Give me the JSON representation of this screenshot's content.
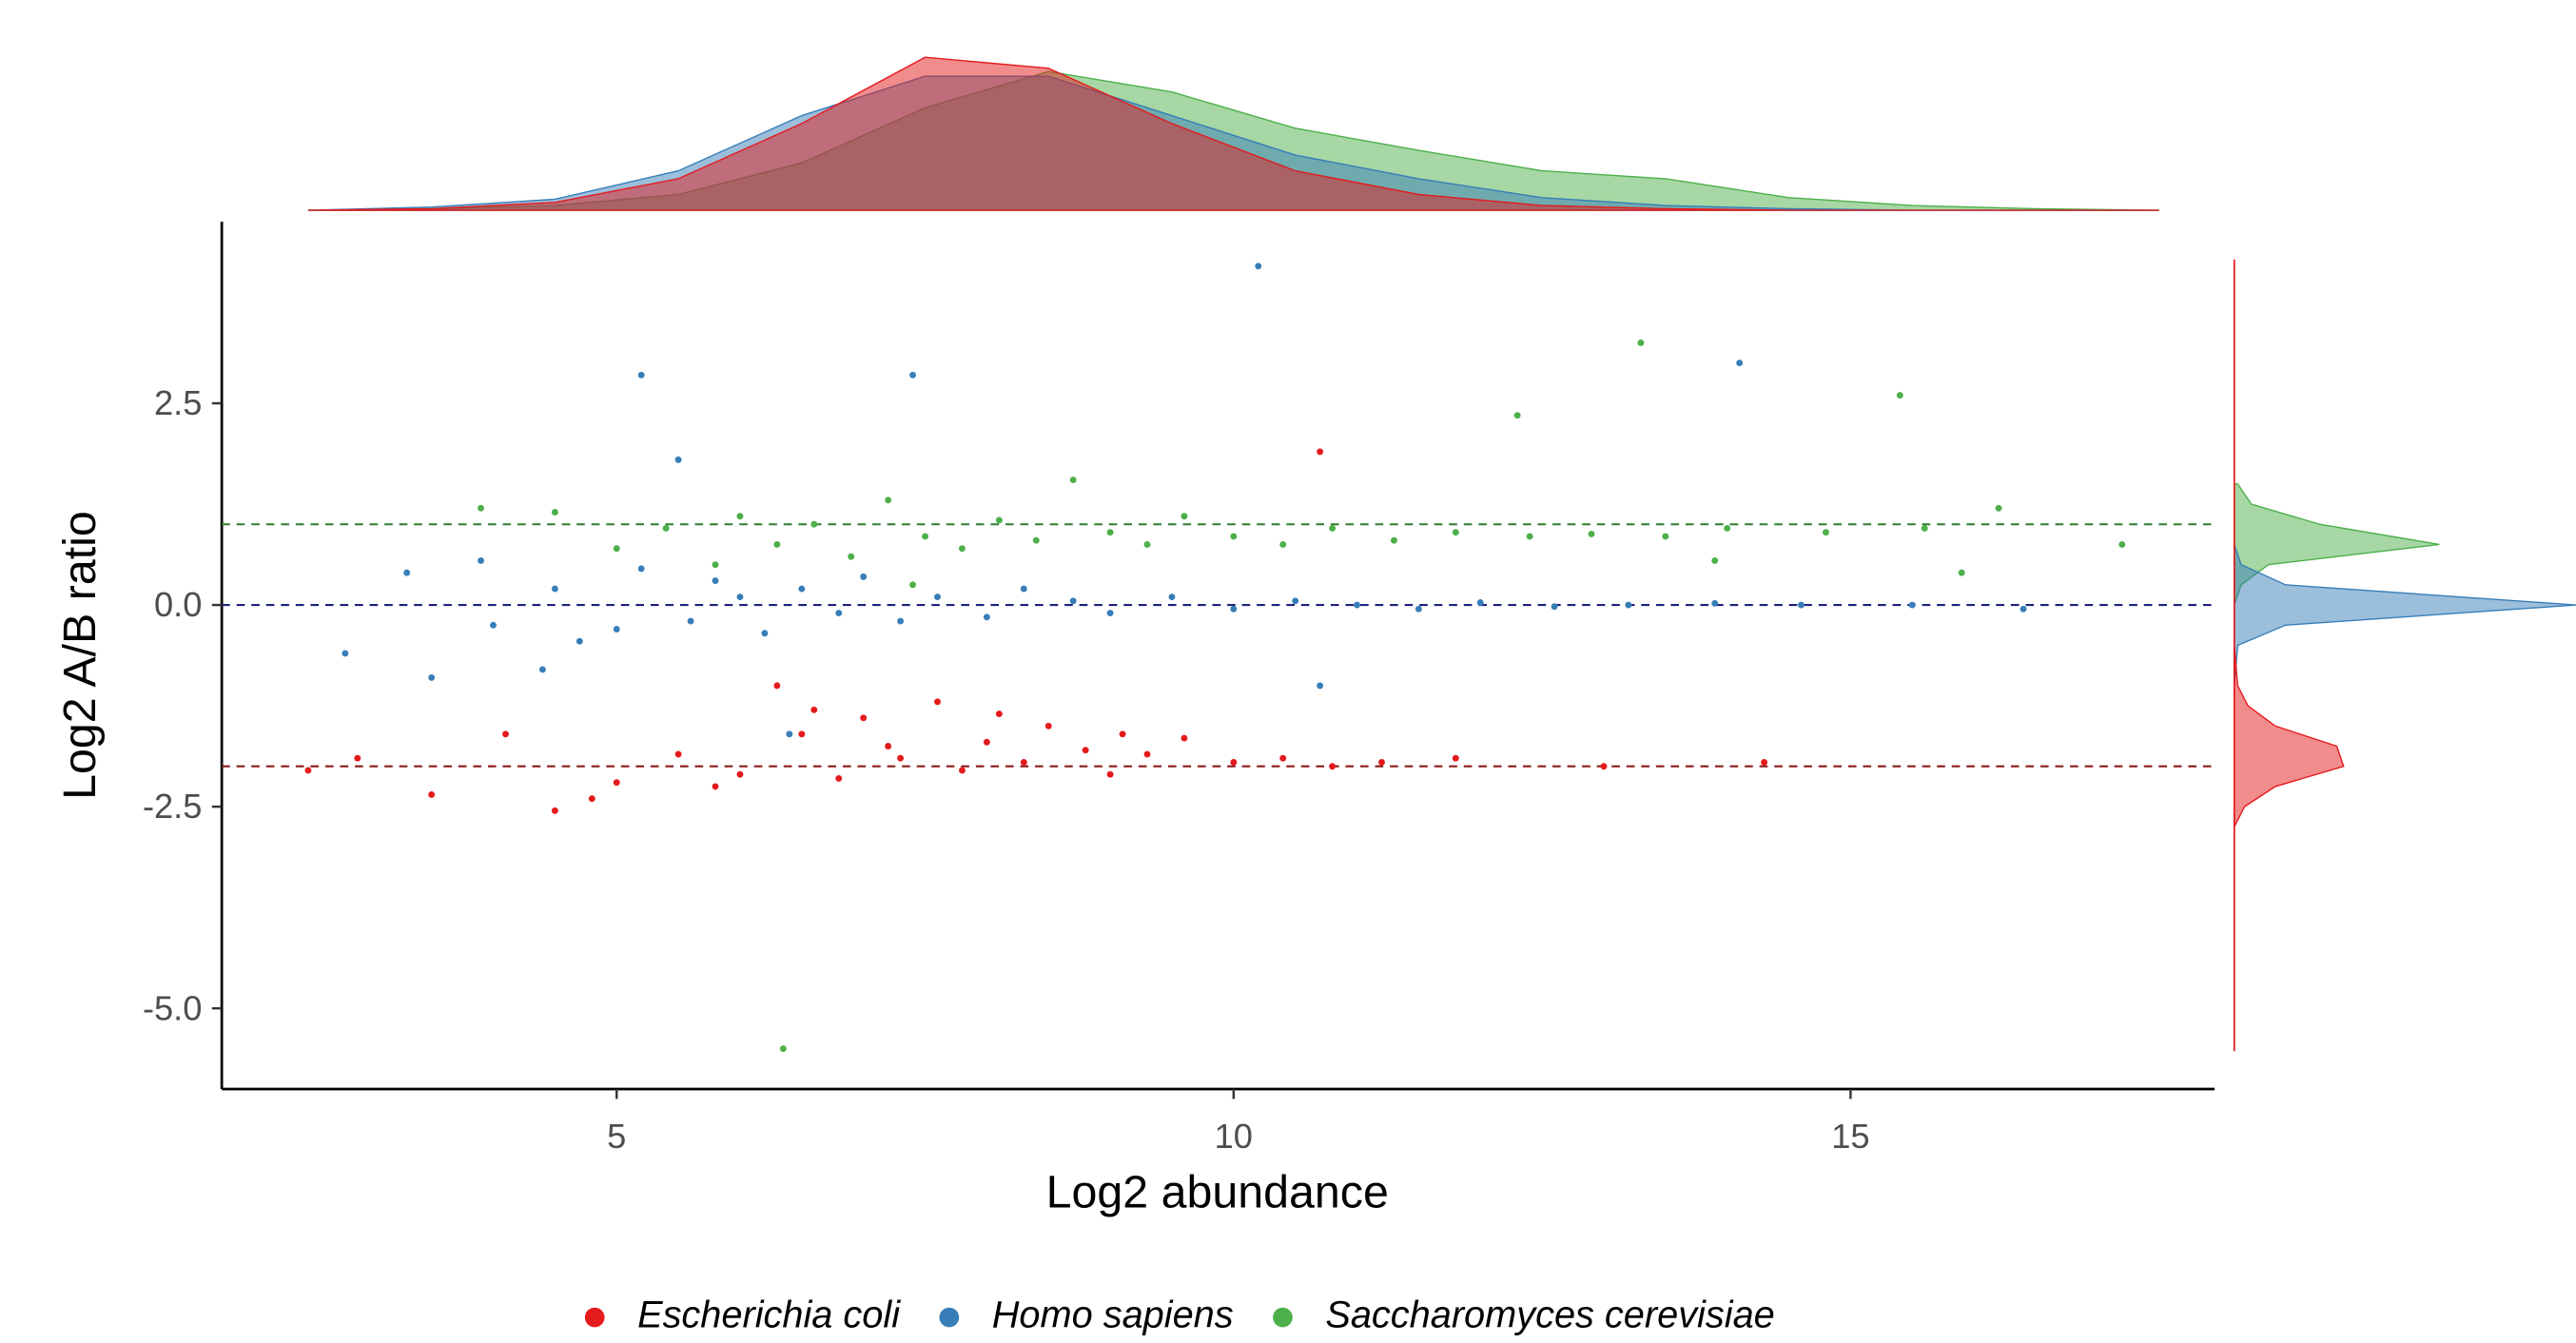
{
  "chart_data": {
    "type": "scatter",
    "x_label": "Log2 abundance",
    "y_label": "Log2 A/B ratio",
    "xlim": [
      1.8,
      17.95
    ],
    "ylim": [
      -6.0,
      4.75
    ],
    "xticks": [
      5,
      10,
      15
    ],
    "yticks": [
      2.5,
      {
        "value": 0,
        "label": "0.0"
      },
      -2.5,
      {
        "value": -5,
        "label": "-5.0"
      }
    ],
    "reference_lines": [
      {
        "value": 1,
        "color": "#2e7d2e"
      },
      {
        "value": 0,
        "color": "#1a237e"
      },
      {
        "value": -2,
        "color": "#8b1a1a"
      }
    ],
    "series": [
      {
        "name": "Escherichia coli",
        "color": "#e41a1c",
        "x": [
          2.5,
          2.9,
          3.5,
          4.1,
          4.5,
          5.0,
          5.5,
          6.0,
          6.3,
          6.5,
          6.8,
          7.0,
          7.3,
          7.6,
          7.8,
          8.0,
          8.3,
          8.5,
          8.8,
          9.0,
          9.3,
          9.6,
          10.0,
          10.4,
          10.8,
          11.2,
          11.8,
          13.0,
          14.3,
          4.8,
          5.8,
          6.6,
          7.2,
          8.1,
          9.1,
          10.7
        ],
        "y": [
          -2.05,
          -1.9,
          -2.35,
          -1.6,
          -2.55,
          -2.2,
          -1.85,
          -2.1,
          -1.0,
          -1.6,
          -2.15,
          -1.4,
          -1.9,
          -1.2,
          -2.05,
          -1.7,
          -1.95,
          -1.5,
          -1.8,
          -2.1,
          -1.85,
          -1.65,
          -1.95,
          -1.9,
          -2.0,
          -1.95,
          -1.9,
          -2.0,
          -1.95,
          -2.4,
          -2.25,
          -1.3,
          -1.75,
          -1.35,
          -1.6,
          1.9
        ]
      },
      {
        "name": "Homo sapiens",
        "color": "#377eb8",
        "x": [
          3.3,
          3.9,
          4.0,
          4.5,
          5.0,
          5.2,
          5.6,
          5.8,
          6.0,
          6.2,
          6.5,
          6.8,
          7.0,
          7.3,
          7.6,
          8.0,
          8.3,
          8.7,
          9.0,
          9.5,
          10.0,
          10.5,
          11.0,
          11.5,
          12.0,
          12.6,
          13.2,
          13.9,
          14.6,
          15.5,
          16.4,
          3.5,
          4.7,
          6.4,
          10.7,
          10.2,
          5.2,
          7.4,
          14.1,
          5.5,
          2.8,
          4.4
        ],
        "y": [
          0.4,
          0.55,
          -0.25,
          0.2,
          -0.3,
          0.45,
          -0.2,
          0.3,
          0.1,
          -0.35,
          0.2,
          -0.1,
          0.35,
          -0.2,
          0.1,
          -0.15,
          0.2,
          0.05,
          -0.1,
          0.1,
          -0.05,
          0.05,
          0.0,
          -0.05,
          0.03,
          -0.02,
          0.0,
          0.02,
          0.0,
          0.0,
          -0.05,
          -0.9,
          -0.45,
          -1.6,
          -1.0,
          4.2,
          2.85,
          2.85,
          3.0,
          1.8,
          -0.6,
          -0.8
        ]
      },
      {
        "name": "Saccharomyces cerevisiae",
        "color": "#4daf4a",
        "x": [
          3.9,
          4.5,
          5.0,
          5.4,
          5.8,
          6.0,
          6.3,
          6.6,
          6.9,
          7.2,
          7.5,
          7.8,
          8.1,
          8.4,
          8.7,
          9.0,
          9.3,
          9.6,
          10.0,
          10.4,
          10.8,
          11.3,
          11.8,
          12.4,
          12.9,
          13.5,
          14.0,
          14.8,
          15.6,
          16.2,
          17.2,
          15.9,
          13.9,
          7.4,
          13.3,
          12.3,
          15.4,
          6.35
        ],
        "y": [
          1.2,
          1.15,
          0.7,
          0.95,
          0.5,
          1.1,
          0.75,
          1.0,
          0.6,
          1.3,
          0.85,
          0.7,
          1.05,
          0.8,
          1.55,
          0.9,
          0.75,
          1.1,
          0.85,
          0.75,
          0.95,
          0.8,
          0.9,
          0.85,
          0.88,
          0.85,
          0.95,
          0.9,
          0.95,
          1.2,
          0.75,
          0.4,
          0.55,
          0.25,
          3.25,
          2.35,
          2.6,
          -5.5
        ]
      }
    ],
    "x_density": {
      "grid": [
        2.5,
        3.5,
        4.5,
        5.5,
        6.5,
        7.5,
        8.5,
        9.5,
        10.5,
        11.5,
        12.5,
        13.5,
        14.5,
        15.5,
        16.5,
        17.5
      ],
      "values": [
        [
          0,
          0.01,
          0.05,
          0.2,
          0.55,
          0.97,
          0.9,
          0.55,
          0.25,
          0.1,
          0.03,
          0.01,
          0,
          0,
          0,
          0
        ],
        [
          0,
          0.02,
          0.07,
          0.25,
          0.6,
          0.85,
          0.85,
          0.6,
          0.35,
          0.2,
          0.08,
          0.03,
          0.01,
          0,
          0,
          0
        ],
        [
          0,
          0.01,
          0.03,
          0.1,
          0.3,
          0.65,
          0.88,
          0.75,
          0.52,
          0.38,
          0.25,
          0.2,
          0.08,
          0.03,
          0.01,
          0
        ]
      ]
    },
    "y_density": {
      "grid": [
        -2.75,
        -2.5,
        -2.25,
        -2,
        -1.75,
        -1.5,
        -1.25,
        -1,
        -0.5,
        -0.25,
        0,
        0.25,
        0.5,
        0.75,
        1,
        1.25,
        1.5
      ],
      "values": [
        [
          0,
          0.03,
          0.12,
          0.32,
          0.3,
          0.12,
          0.04,
          0.01,
          0,
          0,
          0,
          0,
          0,
          0,
          0,
          0,
          0
        ],
        [
          0,
          0,
          0,
          0,
          0,
          0,
          0,
          0,
          0.01,
          0.15,
          1.0,
          0.15,
          0.02,
          0,
          0,
          0,
          0
        ],
        [
          0,
          0,
          0,
          0,
          0,
          0,
          0,
          0,
          0,
          0,
          0,
          0.02,
          0.1,
          0.6,
          0.25,
          0.05,
          0.01
        ]
      ]
    }
  }
}
